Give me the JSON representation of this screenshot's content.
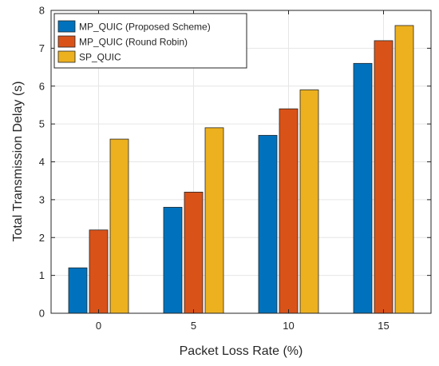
{
  "chart_data": {
    "type": "bar",
    "categories": [
      "0",
      "5",
      "10",
      "15"
    ],
    "series": [
      {
        "name": "MP_QUIC (Proposed Scheme)",
        "color": "#0072BD",
        "values": [
          1.2,
          2.8,
          4.7,
          6.6
        ]
      },
      {
        "name": "MP_QUIC (Round Robin)",
        "color": "#D95319",
        "values": [
          2.2,
          3.2,
          5.4,
          7.2
        ]
      },
      {
        "name": "SP_QUIC",
        "color": "#EDB120",
        "values": [
          4.6,
          4.9,
          5.9,
          7.6
        ]
      }
    ],
    "xlabel": "Packet Loss Rate (%)",
    "ylabel": "Total Transmission Delay (s)",
    "ylim": [
      0,
      8
    ],
    "yticks": [
      0,
      1,
      2,
      3,
      4,
      5,
      6,
      7,
      8
    ],
    "grid": true,
    "legend": "top-left"
  }
}
